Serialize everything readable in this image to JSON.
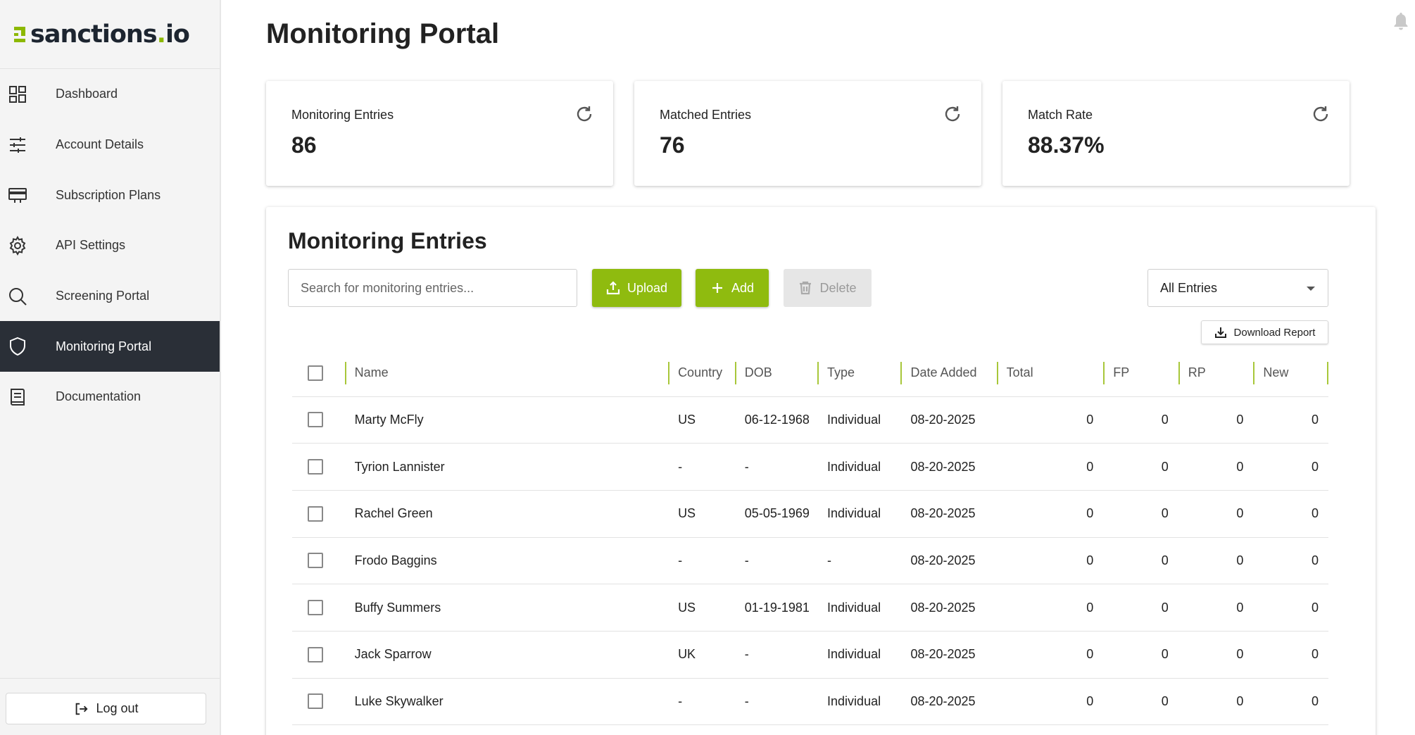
{
  "app": {
    "brand": "sanctions",
    "brand_dot": ".",
    "brand_tld": "io",
    "brand_color": "#8cb800"
  },
  "sidebar": {
    "items": [
      {
        "label": "Dashboard",
        "icon": "dashboard-icon"
      },
      {
        "label": "Account Details",
        "icon": "sliders-icon"
      },
      {
        "label": "Subscription Plans",
        "icon": "credit-card-icon"
      },
      {
        "label": "API Settings",
        "icon": "gear-icon"
      },
      {
        "label": "Screening Portal",
        "icon": "search-icon"
      },
      {
        "label": "Monitoring Portal",
        "icon": "shield-icon",
        "active": true
      },
      {
        "label": "Documentation",
        "icon": "book-icon"
      }
    ],
    "logout_label": "Log out"
  },
  "header": {
    "title": "Monitoring Portal",
    "notification_icon": "bell-icon"
  },
  "stats": [
    {
      "label": "Monitoring Entries",
      "value": "86"
    },
    {
      "label": "Matched Entries",
      "value": "76"
    },
    {
      "label": "Match Rate",
      "value": "88.37%"
    }
  ],
  "entries": {
    "title": "Monitoring Entries",
    "search_placeholder": "Search for monitoring entries...",
    "upload_label": "Upload",
    "add_label": "Add",
    "delete_label": "Delete",
    "filter_value": "All Entries",
    "download_label": "Download Report",
    "columns": [
      "Name",
      "Country",
      "DOB",
      "Type",
      "Date Added",
      "Total",
      "FP",
      "RP",
      "New"
    ],
    "rows": [
      {
        "name": "Marty McFly",
        "country": "US",
        "dob": "06-12-1968",
        "type": "Individual",
        "date_added": "08-20-2025",
        "total": "0",
        "fp": "0",
        "rp": "0",
        "new": "0"
      },
      {
        "name": "Tyrion Lannister",
        "country": "-",
        "dob": "-",
        "type": "Individual",
        "date_added": "08-20-2025",
        "total": "0",
        "fp": "0",
        "rp": "0",
        "new": "0"
      },
      {
        "name": "Rachel Green",
        "country": "US",
        "dob": "05-05-1969",
        "type": "Individual",
        "date_added": "08-20-2025",
        "total": "0",
        "fp": "0",
        "rp": "0",
        "new": "0"
      },
      {
        "name": "Frodo Baggins",
        "country": "-",
        "dob": "-",
        "type": "-",
        "date_added": "08-20-2025",
        "total": "0",
        "fp": "0",
        "rp": "0",
        "new": "0"
      },
      {
        "name": "Buffy Summers",
        "country": "US",
        "dob": "01-19-1981",
        "type": "Individual",
        "date_added": "08-20-2025",
        "total": "0",
        "fp": "0",
        "rp": "0",
        "new": "0"
      },
      {
        "name": "Jack Sparrow",
        "country": "UK",
        "dob": "-",
        "type": "Individual",
        "date_added": "08-20-2025",
        "total": "0",
        "fp": "0",
        "rp": "0",
        "new": "0"
      },
      {
        "name": "Luke Skywalker",
        "country": "-",
        "dob": "-",
        "type": "Individual",
        "date_added": "08-20-2025",
        "total": "0",
        "fp": "0",
        "rp": "0",
        "new": "0"
      }
    ]
  }
}
